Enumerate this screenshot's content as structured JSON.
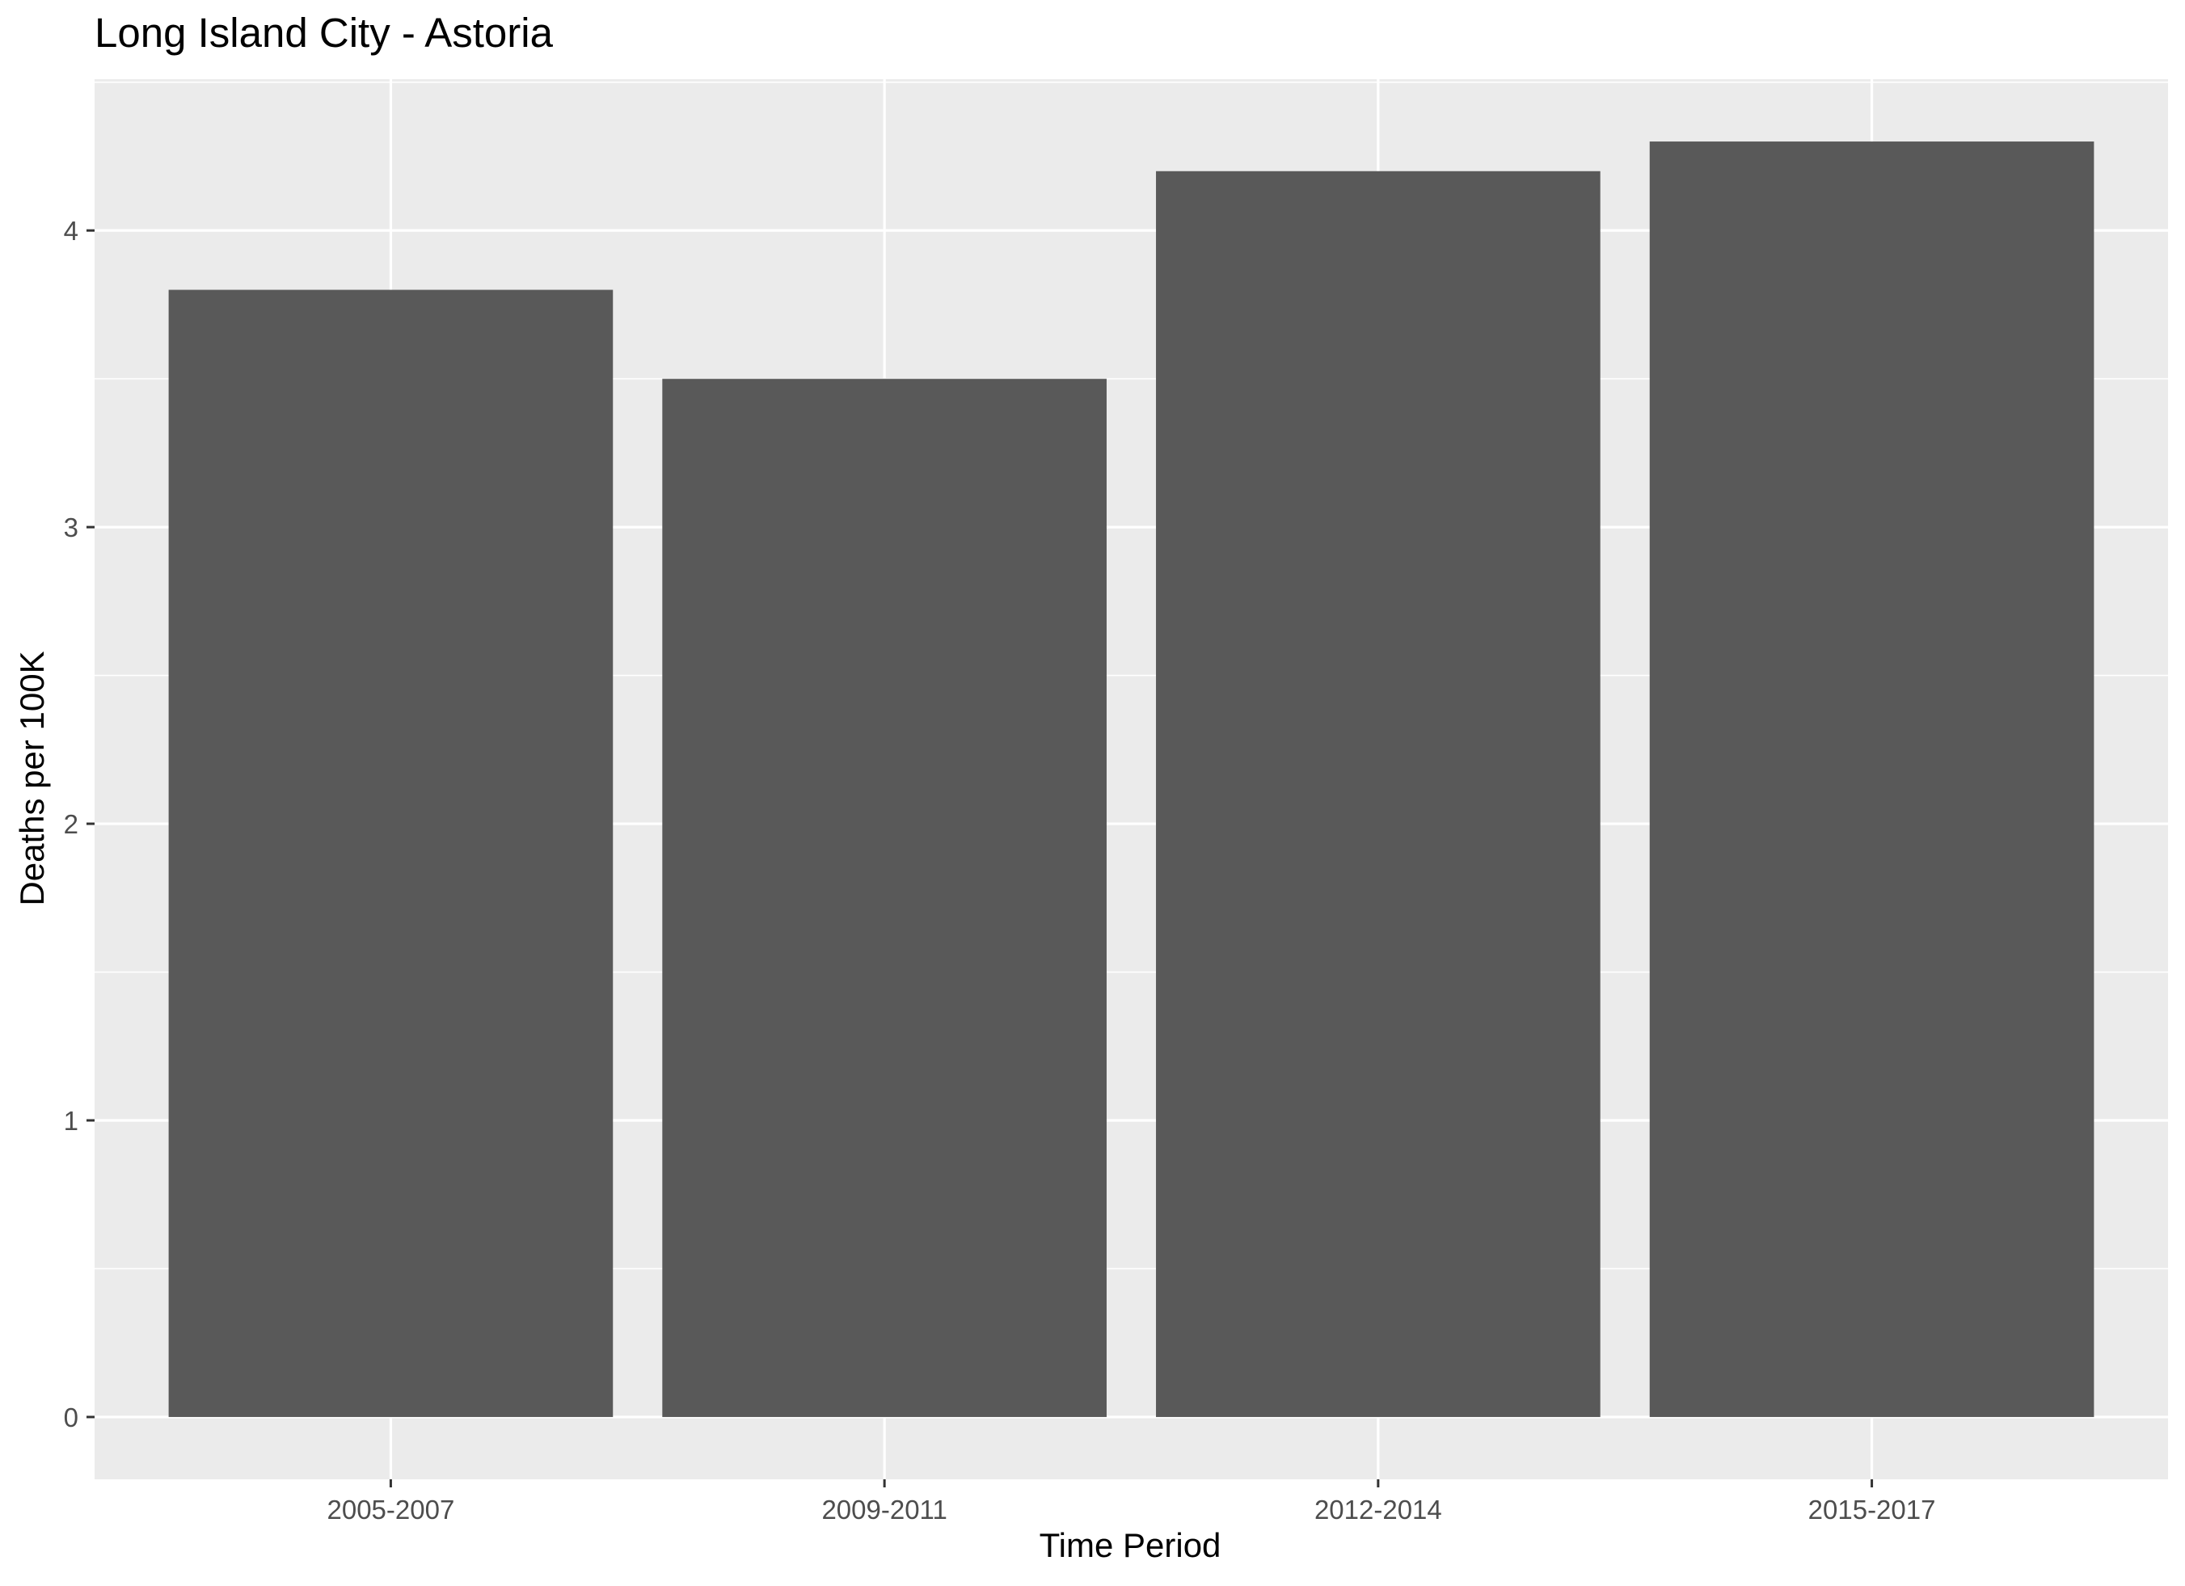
{
  "chart_data": {
    "type": "bar",
    "title": "Long Island City - Astoria",
    "xlabel": "Time Period",
    "ylabel": "Deaths per 100K",
    "categories": [
      "2005-2007",
      "2009-2011",
      "2012-2014",
      "2015-2017"
    ],
    "values": [
      3.8,
      3.5,
      4.2,
      4.3
    ],
    "ylim": [
      -0.21,
      4.51
    ],
    "yticks": [
      0,
      1,
      2,
      3,
      4
    ],
    "ytick_labels": [
      "0",
      "1",
      "2",
      "3",
      "4"
    ],
    "grid": true,
    "legend": "none",
    "colors": {
      "bar": "#595959",
      "panel_background": "#ebebeb",
      "grid": "#ffffff",
      "tick_text": "#4d4d4d",
      "axis_ticks": "#333333"
    }
  }
}
